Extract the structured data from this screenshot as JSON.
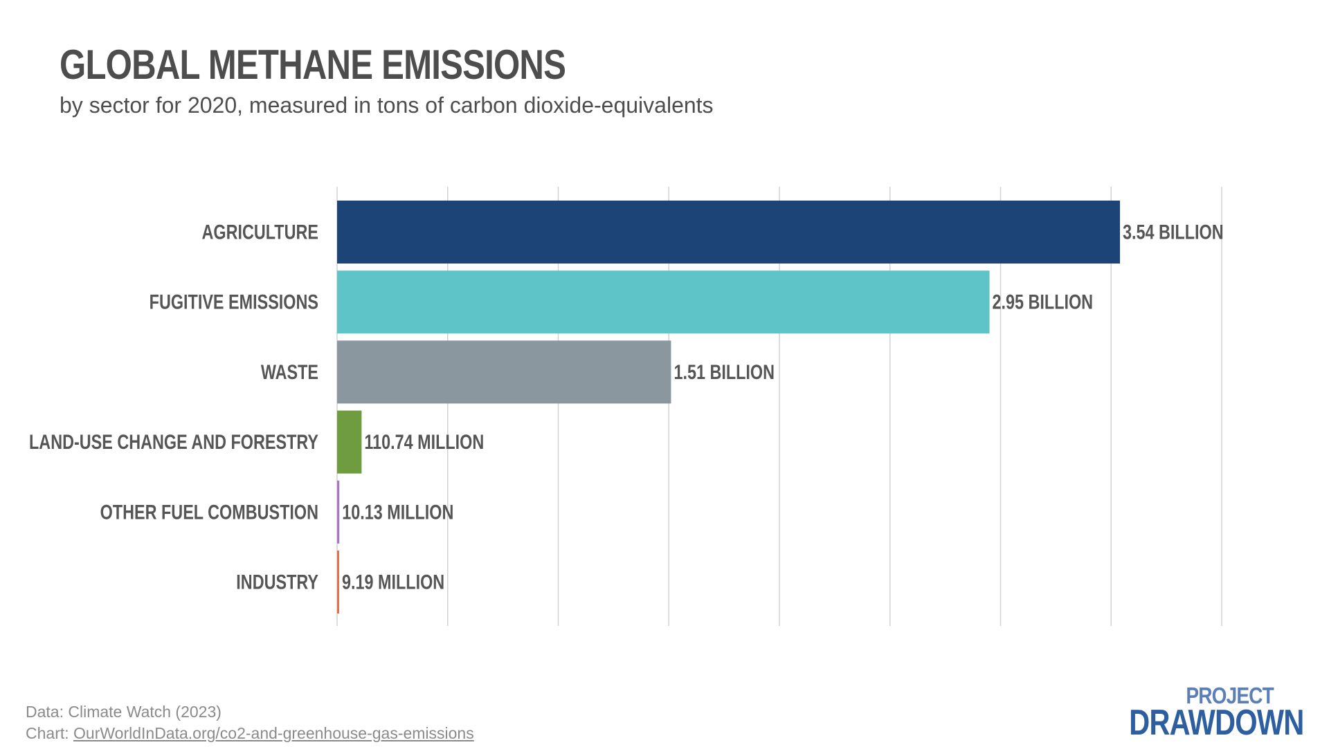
{
  "header": {
    "title": "GLOBAL METHANE EMISSIONS",
    "subtitle": "by sector for 2020, measured in tons of carbon dioxide-equivalents"
  },
  "chart_data": {
    "type": "bar",
    "orientation": "horizontal",
    "title": "GLOBAL METHANE EMISSIONS",
    "subtitle": "by sector for 2020, measured in tons of carbon dioxide-equivalents",
    "categories": [
      "AGRICULTURE",
      "FUGITIVE EMISSIONS",
      "WASTE",
      "LAND-USE CHANGE AND FORESTRY",
      "OTHER FUEL COMBUSTION",
      "INDUSTRY"
    ],
    "values": [
      3540000000,
      2950000000,
      1510000000,
      110740000,
      10130000,
      9190000
    ],
    "value_labels": [
      "3.54 BILLION",
      "2.95 BILLION",
      "1.51 BILLION",
      "110.74 MILLION",
      "10.13 MILLION",
      "9.19 MILLION"
    ],
    "colors": [
      "#1d4477",
      "#5ec4c8",
      "#8a979e",
      "#6f9c3e",
      "#a678c4",
      "#e0714a"
    ],
    "xlim": [
      0,
      4000000000
    ],
    "grid": true,
    "grid_lines": 9,
    "axis_tick_labels_shown": false,
    "legend": "none"
  },
  "footer": {
    "data_source": "Data: Climate Watch (2023)",
    "chart_prefix": "Chart: ",
    "chart_link": "OurWorldInData.org/co2-and-greenhouse-gas-emissions"
  },
  "logo": {
    "line1": "PROJECT",
    "line2": "DRAWDOWN",
    "color_primary": "#2c5ea0",
    "color_secondary": "#5c7fb8"
  }
}
